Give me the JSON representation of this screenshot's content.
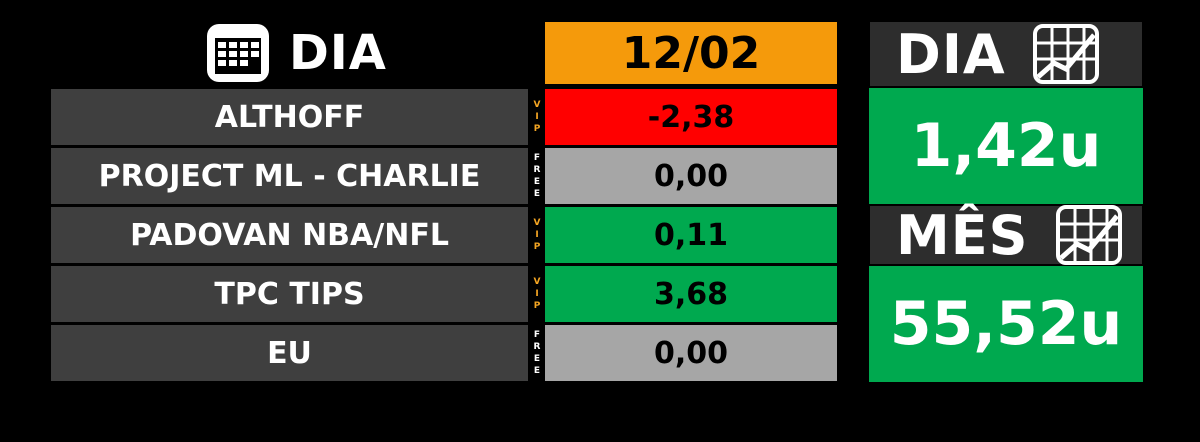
{
  "header": {
    "title": "DIA",
    "date": "12/02"
  },
  "rows": [
    {
      "name": "ALTHOFF",
      "tag": [
        "V",
        "I",
        "P"
      ],
      "tag_color": "#f5a623",
      "value": "-2,38",
      "value_color": "#ff0000"
    },
    {
      "name": "PROJECT ML - CHARLIE",
      "tag": [
        "F",
        "R",
        "E",
        "E"
      ],
      "tag_color": "#ffffff",
      "value": "0,00",
      "value_color": "#a6a6a6"
    },
    {
      "name": "PADOVAN NBA/NFL",
      "tag": [
        "V",
        "I",
        "P"
      ],
      "tag_color": "#f5a623",
      "value": "0,11",
      "value_color": "#00a94f"
    },
    {
      "name": "TPC TIPS",
      "tag": [
        "V",
        "I",
        "P"
      ],
      "tag_color": "#f5a623",
      "value": "3,68",
      "value_color": "#00a94f"
    },
    {
      "name": "EU",
      "tag": [
        "F",
        "R",
        "E",
        "E"
      ],
      "tag_color": "#ffffff",
      "value": "0,00",
      "value_color": "#a6a6a6"
    }
  ],
  "summary": {
    "day_label": "DIA",
    "day_total": "1,42u",
    "month_label": "MÊS",
    "month_total": "55,52u"
  },
  "icons": {
    "calendar": "calendar-icon",
    "chart": "chart-icon"
  },
  "colors": {
    "accent": "#f59a0b",
    "positive": "#00a94f",
    "negative": "#ff0000",
    "neutral": "#a6a6a6"
  }
}
